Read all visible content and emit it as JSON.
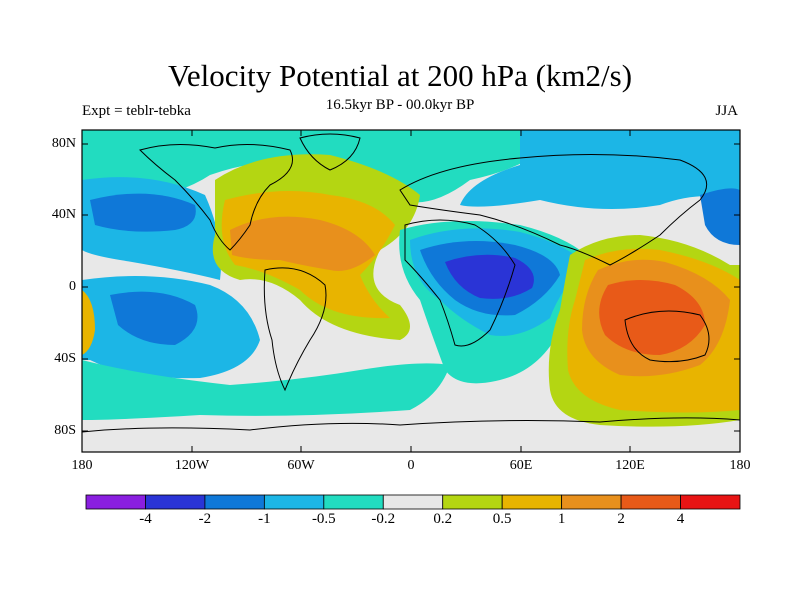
{
  "title": "Velocity Potential at 200 hPa (km2/s)",
  "subtitle": "16.5kyr BP - 00.0kyr BP",
  "left_tag": "Expt = teblr-tebka",
  "right_tag": "JJA",
  "lat_labels": [
    "80N",
    "40N",
    "0",
    "40S",
    "80S"
  ],
  "lon_labels": [
    "180",
    "120W",
    "60W",
    "0",
    "60E",
    "120E",
    "180"
  ],
  "colorbar": {
    "colors": [
      "#8a1fe0",
      "#2a34d6",
      "#0f78d8",
      "#1cb6e6",
      "#22dcc0",
      "#e8e8e8",
      "#b4d612",
      "#e8b400",
      "#e8901c",
      "#e85a18",
      "#e81414"
    ],
    "labels": [
      "-4",
      "-2",
      "-1",
      "-0.5",
      "-0.2",
      "0.2",
      "0.5",
      "1",
      "2",
      "4"
    ]
  },
  "chart_data": {
    "type": "heatmap",
    "title": "Velocity Potential at 200 hPa (km2/s)",
    "subtitle": "16.5kyr BP - 00.0kyr BP",
    "season": "JJA",
    "experiment": "teblr-tebka",
    "x_ticks": [
      "180",
      "120W",
      "60W",
      "0",
      "60E",
      "120E",
      "180"
    ],
    "y_ticks": [
      "80N",
      "40N",
      "0",
      "40S",
      "80S"
    ],
    "xlim": [
      -180,
      180
    ],
    "ylim": [
      -90,
      90
    ],
    "levels": [
      -4,
      -2,
      -1,
      -0.5,
      -0.2,
      0.2,
      0.5,
      1,
      2,
      4
    ],
    "regions": [
      {
        "level_index": 1,
        "lon": 40,
        "lat": 3
      },
      {
        "level_index": 9,
        "lon": 125,
        "lat": -12
      },
      {
        "level_index": 8,
        "lon": -80,
        "lat": 18
      },
      {
        "level_index": 3,
        "lon": -130,
        "lat": -20
      },
      {
        "level_index": 2,
        "lon": -145,
        "lat": 38
      }
    ]
  }
}
